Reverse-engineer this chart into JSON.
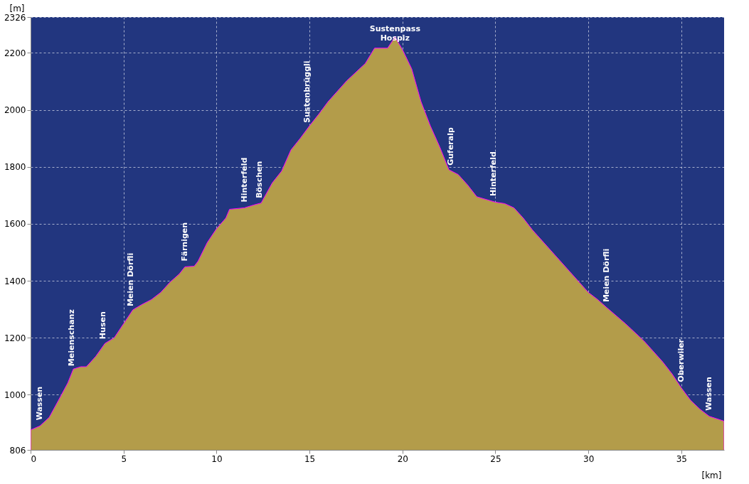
{
  "chart_data": {
    "type": "area",
    "xlabel": "[km]",
    "ylabel": "[m]",
    "x": [
      0,
      0.5,
      1,
      1.5,
      2,
      2.3,
      2.7,
      3,
      3.5,
      4,
      4.5,
      5,
      5.5,
      6,
      6.5,
      7,
      7.5,
      8,
      8.3,
      8.8,
      9,
      9.5,
      10,
      10.5,
      10.7,
      11.5,
      12,
      12.4,
      13,
      13.5,
      14,
      14.5,
      15,
      15.5,
      16,
      17,
      18,
      18.5,
      19.2,
      19.6,
      20,
      20.5,
      21,
      21.5,
      22,
      22.5,
      23,
      23.5,
      24,
      25,
      25.5,
      26,
      26.5,
      27,
      28,
      29,
      30,
      30.5,
      31,
      32,
      33,
      34,
      34.5,
      35,
      35.5,
      36,
      36.5,
      37.3
    ],
    "series": [
      {
        "color": "#b39c4a",
        "values": [
          876,
          890,
          920,
          980,
          1041,
          1090,
          1098,
          1098,
          1134,
          1180,
          1200,
          1249,
          1298,
          1317,
          1334,
          1359,
          1395,
          1424,
          1449,
          1451,
          1468,
          1534,
          1583,
          1620,
          1651,
          1656,
          1666,
          1673,
          1744,
          1785,
          1859,
          1900,
          1944,
          1985,
          2029,
          2102,
          2163,
          2217,
          2217,
          2256,
          2212,
          2144,
          2029,
          1944,
          1871,
          1790,
          1773,
          1737,
          1695,
          1676,
          1671,
          1656,
          1620,
          1578,
          1505,
          1432,
          1359,
          1334,
          1305,
          1249,
          1188,
          1115,
          1073,
          1024,
          980,
          949,
          924,
          907
        ]
      }
    ],
    "xlim": [
      0,
      37.3
    ],
    "ylim": [
      806,
      2326
    ],
    "xticks": [
      0,
      5,
      10,
      15,
      20,
      25,
      30,
      35
    ],
    "yticks": [
      806,
      1000,
      1200,
      1400,
      1600,
      1800,
      2000,
      2200,
      2326
    ],
    "grid": true,
    "annotations": [
      {
        "text": "Wassen",
        "x": 0.5,
        "y": 890
      },
      {
        "text": "Meienschanz",
        "x": 2.2,
        "y": 1080
      },
      {
        "text": "Husen",
        "x": 3.9,
        "y": 1175
      },
      {
        "text": "Meien Dörfli",
        "x": 5.4,
        "y": 1290
      },
      {
        "text": "Färnigen",
        "x": 8.3,
        "y": 1449
      },
      {
        "text": "Hinterfeld",
        "x": 11.5,
        "y": 1656
      },
      {
        "text": "Böschen",
        "x": 12.3,
        "y": 1670
      },
      {
        "text": "Sustenbrüggli",
        "x": 14.9,
        "y": 1935
      },
      {
        "text": "Sustenpass\nHospiz",
        "x": 19.6,
        "y": 2256
      },
      {
        "text": "Guferalp",
        "x": 22.6,
        "y": 1785
      },
      {
        "text": "Hinterfeld",
        "x": 24.9,
        "y": 1677
      },
      {
        "text": "Meien Dörfli",
        "x": 31,
        "y": 1305
      },
      {
        "text": "Oberwiler",
        "x": 35.0,
        "y": 1024
      },
      {
        "text": "Wassen",
        "x": 36.5,
        "y": 924
      }
    ]
  }
}
